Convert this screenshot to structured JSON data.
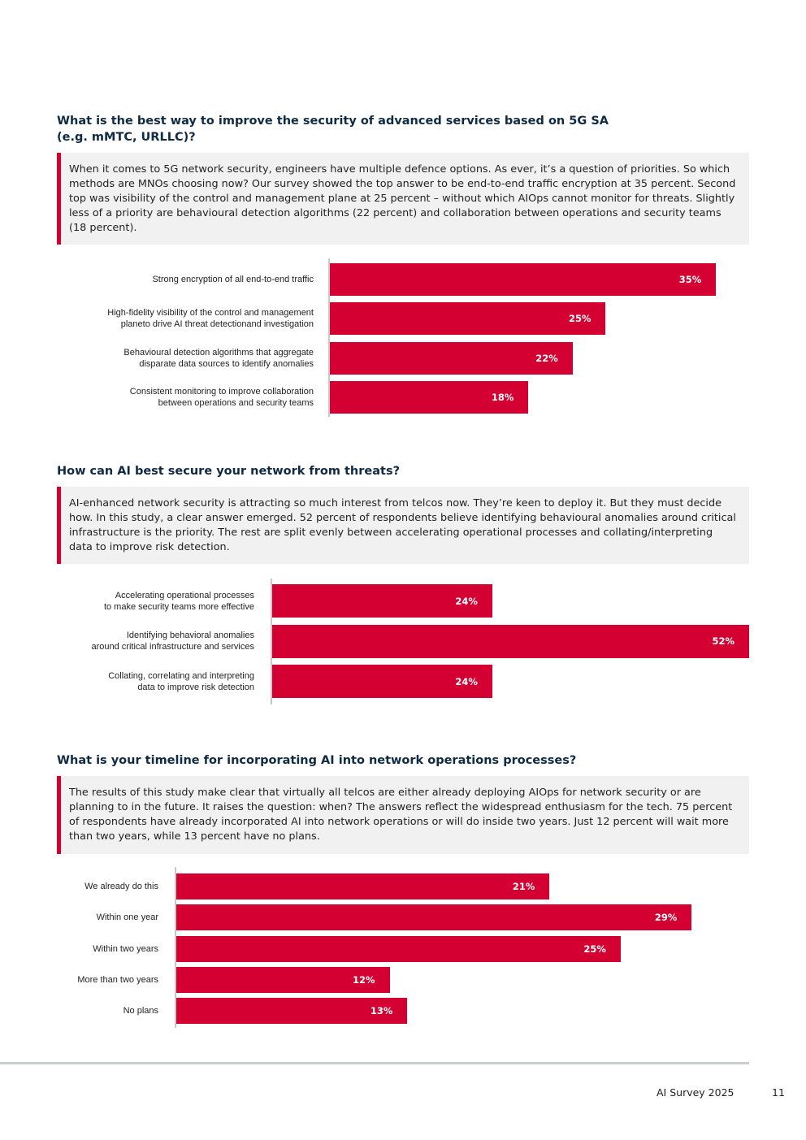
{
  "sections": [
    {
      "title": "What is the best way to improve the security of advanced services based on 5G SA (e.g. mMTC, URLLC)?",
      "intro": "When it comes to 5G network security, engineers have multiple defence options. As ever, it’s a question of priorities. So which methods are MNOs choosing now? Our survey showed the top answer to be end-to-end traffic encryption at 35 percent. Second top was visibility of the control and management plane at 25 percent – without which AIOps cannot monitor for threats. Slightly less of a priority are behavioural detection algorithms (22 percent) and collaboration between operations and security teams (18 percent)."
    },
    {
      "title": "How can AI best secure your network from threats?",
      "intro": "AI-enhanced network security is attracting so much interest from telcos now. They’re keen to deploy it. But they must decide how. In this study, a clear answer emerged. 52 percent of respondents believe identifying behavioural anomalies around critical infrastructure is the priority. The rest are split evenly between accelerating operational processes and collating/interpreting data to improve risk detection."
    },
    {
      "title": "What is your timeline for incorporating AI into network operations processes?",
      "intro": "The results of this study make clear that virtually all telcos are either already deploying AIOps for network security or are planning to in the future. It raises the question: when? The answers reflect the widespread enthusiasm for the tech. 75 percent of respondents have already incorporated AI into network operations or will do inside two years. Just 12 percent will wait more than two years, while 13 percent have no plans."
    }
  ],
  "chart_data": [
    {
      "type": "bar",
      "orientation": "horizontal",
      "categories": [
        "Strong encryption of all end-to-end traffic",
        "High-fidelity visibility of the control and management\nplaneto drive AI threat detectionand investigation",
        "Behavioural detection algorithms that aggregate\ndisparate data sources to identify anomalies",
        "Consistent monitoring to improve collaboration\nbetween operations and security teams"
      ],
      "values": [
        35,
        25,
        22,
        18
      ],
      "value_labels": [
        "35%",
        "25%",
        "22%",
        "18%"
      ],
      "xlim": [
        0,
        38
      ],
      "color": "#d50032"
    },
    {
      "type": "bar",
      "orientation": "horizontal",
      "categories": [
        "Accelerating operational processes\nto make security teams more effective",
        "Identifying behavioral anomalies\naround critical infrastructure and services",
        "Collating, correlating and interpreting\ndata to improve risk detection"
      ],
      "values": [
        24,
        52,
        24
      ],
      "value_labels": [
        "24%",
        "52%",
        "24%"
      ],
      "xlim": [
        0,
        52
      ],
      "color": "#d50032"
    },
    {
      "type": "bar",
      "orientation": "horizontal",
      "categories": [
        "We already do this",
        "Within one year",
        "Within two years",
        "More than two years",
        "No plans"
      ],
      "values": [
        21,
        29,
        25,
        12,
        13
      ],
      "value_labels": [
        "21%",
        "29%",
        "25%",
        "12%",
        "13%"
      ],
      "xlim": [
        0,
        32
      ],
      "color": "#d50032"
    }
  ],
  "footer": {
    "publication": "AI Survey 2025",
    "page_number": "11"
  }
}
